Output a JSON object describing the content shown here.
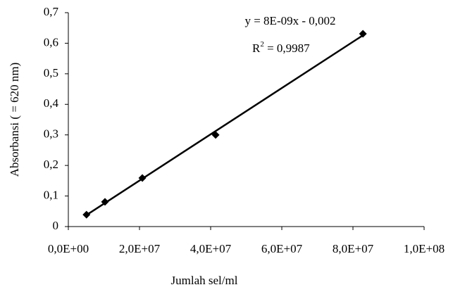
{
  "chart_data": {
    "type": "scatter",
    "x_label": "Jumlah sel/ml",
    "y_label": "Absorbansi (   = 620 nm)",
    "equation": "y = 8E-09x - 0,002",
    "r_squared": {
      "base": "R",
      "sup": "2",
      "rest": " = 0,9987"
    },
    "trendline": true,
    "color": "#000000",
    "x": [
      5100000,
      10300000,
      20800000,
      41400000,
      82800000
    ],
    "values": [
      0.039,
      0.081,
      0.159,
      0.3,
      0.631
    ],
    "xlim": [
      0,
      100000000
    ],
    "xticks": [
      {
        "value": 0,
        "label": "0,0E+00"
      },
      {
        "value": 20000000,
        "label": "2,0E+07"
      },
      {
        "value": 40000000,
        "label": "4,0E+07"
      },
      {
        "value": 60000000,
        "label": "6,0E+07"
      },
      {
        "value": 80000000,
        "label": "8,0E+07"
      },
      {
        "value": 100000000,
        "label": "1,0E+08"
      }
    ],
    "ylim": [
      0,
      0.7
    ],
    "yticks": [
      0,
      {
        "value": 0.1,
        "label": "0,1"
      },
      {
        "value": 0.2,
        "label": "0,2"
      },
      {
        "value": 0.3,
        "label": "0,3"
      },
      {
        "value": 0.4,
        "label": "0,4"
      },
      {
        "value": 0.5,
        "label": "0,5"
      },
      {
        "value": 0.6,
        "label": "0,6"
      },
      {
        "value": 0.7,
        "label": "0,7"
      }
    ],
    "grid": false
  }
}
